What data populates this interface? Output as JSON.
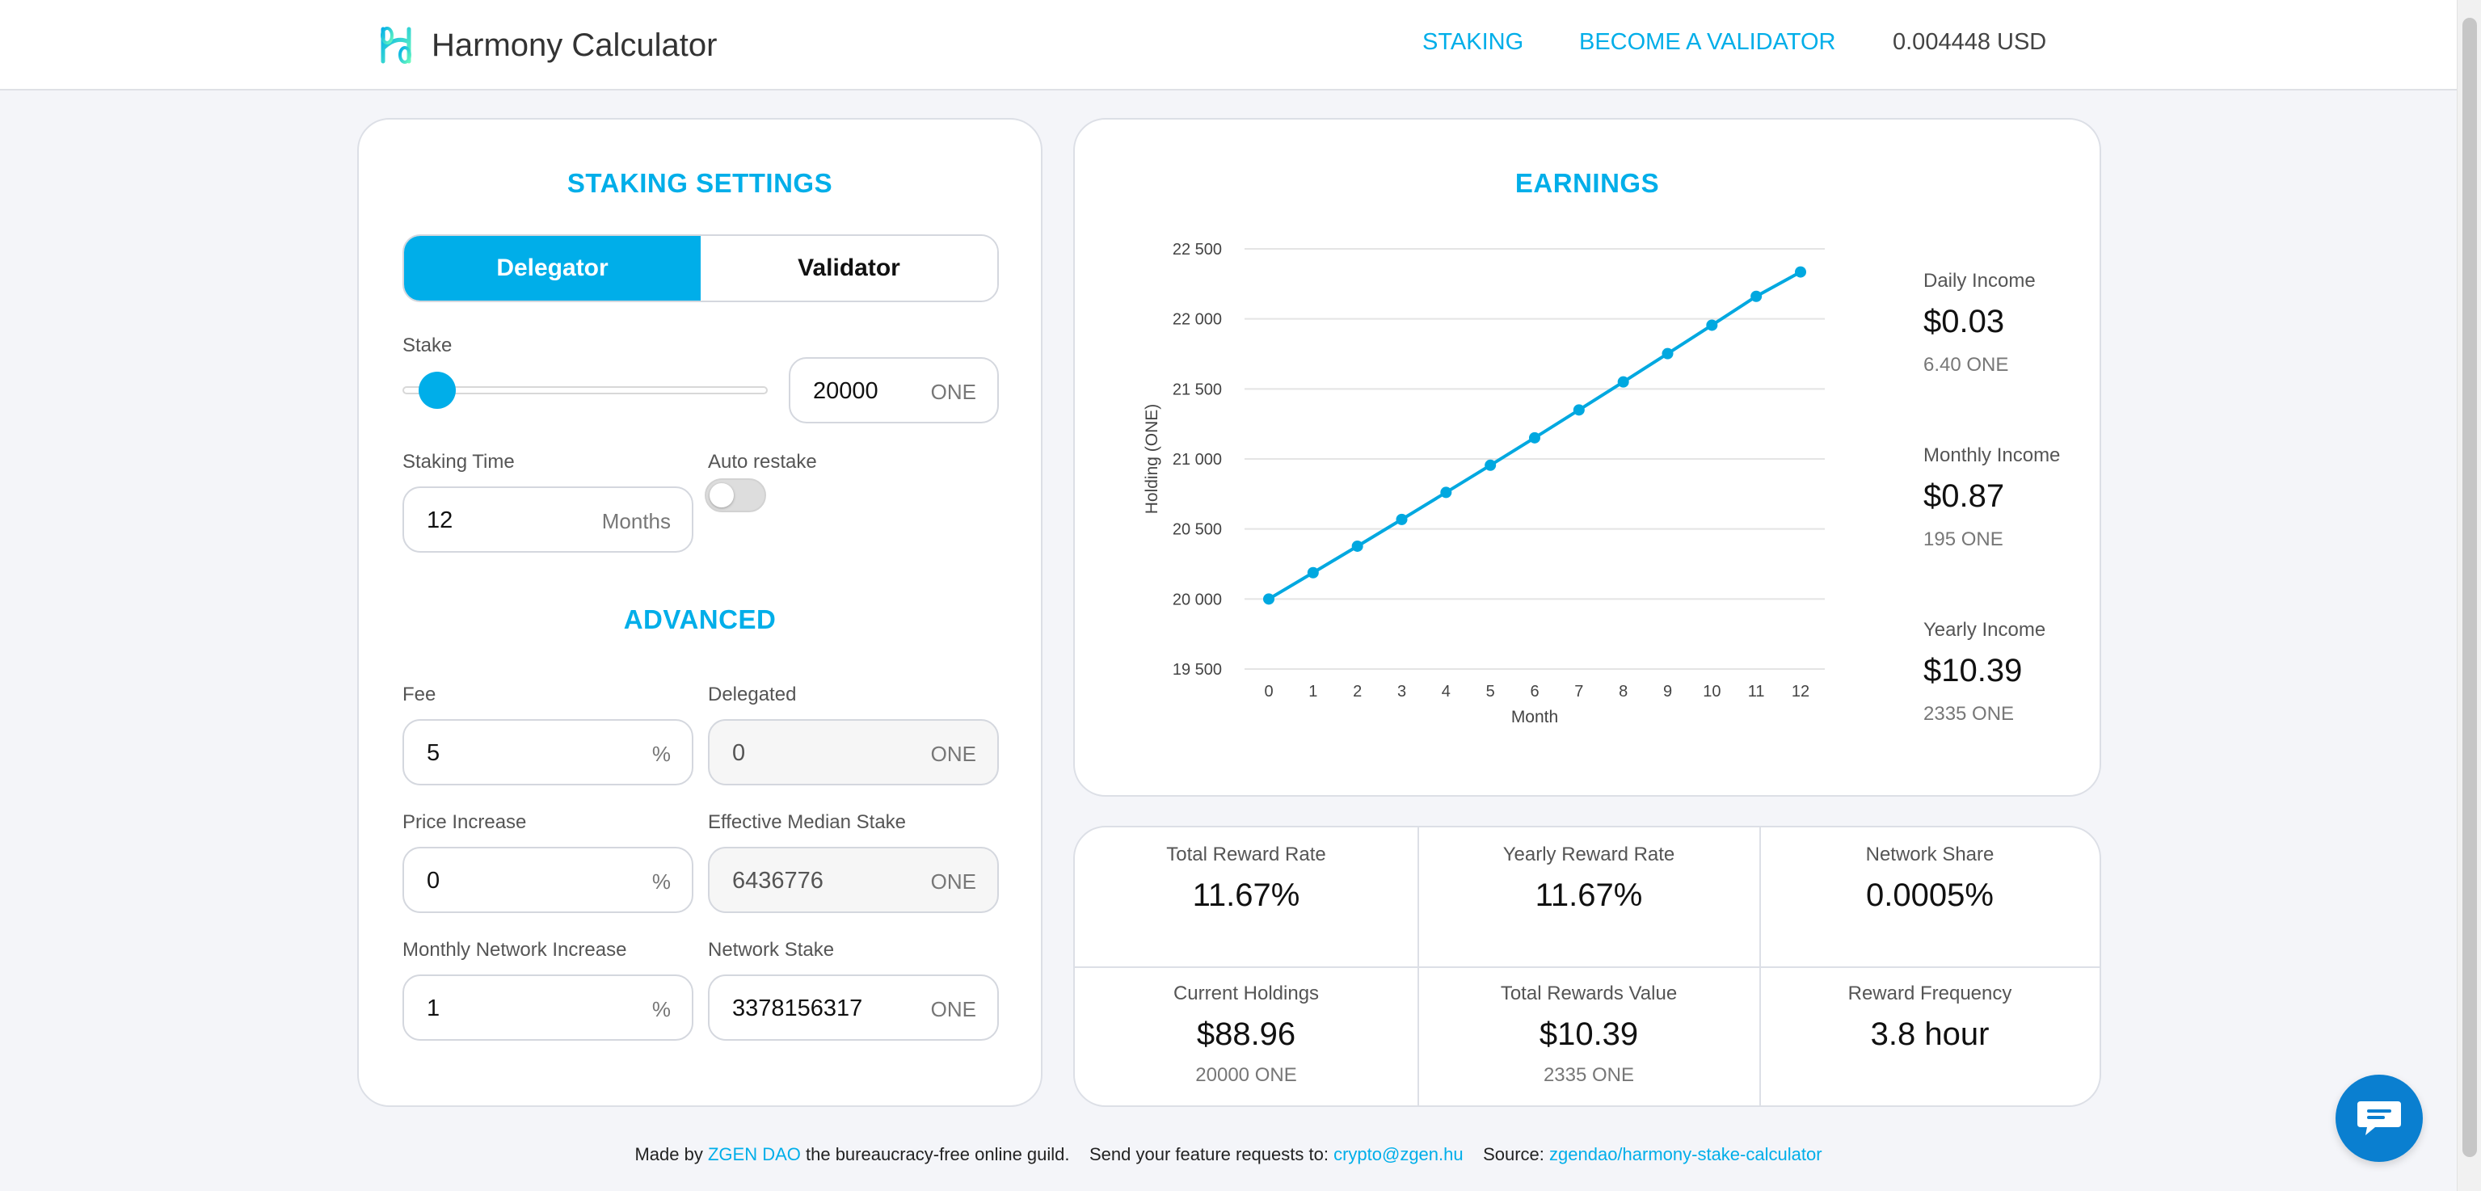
{
  "header": {
    "app_name": "Harmony Calculator",
    "nav": [
      {
        "label": "STAKING"
      },
      {
        "label": "BECOME A VALIDATOR"
      }
    ],
    "price": "0.004448 USD"
  },
  "settings": {
    "title": "STAKING SETTINGS",
    "modes": [
      "Delegator",
      "Validator"
    ],
    "active_mode": "Delegator",
    "stake_label": "Stake",
    "stake_value": "20000",
    "stake_unit": "ONE",
    "stake_slider_fraction": 0.03,
    "staking_time_label": "Staking Time",
    "staking_time_value": "12",
    "staking_time_unit": "Months",
    "auto_restake_label": "Auto restake",
    "auto_restake_on": false
  },
  "advanced": {
    "title": "ADVANCED",
    "fee_label": "Fee",
    "fee_value": "5",
    "fee_unit": "%",
    "delegated_label": "Delegated",
    "delegated_value": "0",
    "delegated_unit": "ONE",
    "price_increase_label": "Price Increase",
    "price_increase_value": "0",
    "price_increase_unit": "%",
    "median_stake_label": "Effective Median Stake",
    "median_stake_value": "6436776",
    "median_stake_unit": "ONE",
    "network_increase_label": "Monthly Network Increase",
    "network_increase_value": "1",
    "network_increase_unit": "%",
    "network_stake_label": "Network Stake",
    "network_stake_value": "3378156317",
    "network_stake_unit": "ONE"
  },
  "earnings": {
    "title": "EARNINGS",
    "daily_label": "Daily Income",
    "daily_value": "$0.03",
    "daily_sub": "6.40 ONE",
    "monthly_label": "Monthly Income",
    "monthly_value": "$0.87",
    "monthly_sub": "195 ONE",
    "yearly_label": "Yearly Income",
    "yearly_value": "$10.39",
    "yearly_sub": "2335 ONE"
  },
  "chart_data": {
    "type": "line",
    "xlabel": "Month",
    "ylabel": "Holding (ONE)",
    "x": [
      0,
      1,
      2,
      3,
      4,
      5,
      6,
      7,
      8,
      9,
      10,
      11,
      12
    ],
    "y_ticks": [
      "19 500",
      "20 000",
      "20 500",
      "21 000",
      "21 500",
      "22 000",
      "22 500"
    ],
    "y_tick_values": [
      19500,
      20000,
      20500,
      21000,
      21500,
      22000,
      22500
    ],
    "ylim": [
      19500,
      22500
    ],
    "grid": true,
    "series": [
      {
        "values": [
          20000,
          20188,
          20377,
          20568,
          20761,
          20955,
          21151,
          21350,
          21550,
          21752,
          21955,
          22161,
          22335
        ]
      }
    ],
    "color": "#00a8e0"
  },
  "stats": [
    {
      "label": "Total Reward Rate",
      "value": "11.67%",
      "sub": ""
    },
    {
      "label": "Yearly Reward Rate",
      "value": "11.67%",
      "sub": ""
    },
    {
      "label": "Network Share",
      "value": "0.0005%",
      "sub": ""
    },
    {
      "label": "Current Holdings",
      "value": "$88.96",
      "sub": "20000 ONE"
    },
    {
      "label": "Total Rewards Value",
      "value": "$10.39",
      "sub": "2335 ONE"
    },
    {
      "label": "Reward Frequency",
      "value": "3.8 hour",
      "sub": ""
    }
  ],
  "footer": {
    "made_by": "Made by",
    "org_link": "ZGEN DAO",
    "tagline": "the bureaucracy-free online guild.",
    "requests": "Send your feature requests to:",
    "email": "crypto@zgen.hu",
    "source_label": "Source:",
    "source_link": "zgendao/harmony-stake-calculator"
  },
  "icons": {
    "logo": "harmony-logo-icon",
    "chat": "chat-bubble-icon"
  }
}
